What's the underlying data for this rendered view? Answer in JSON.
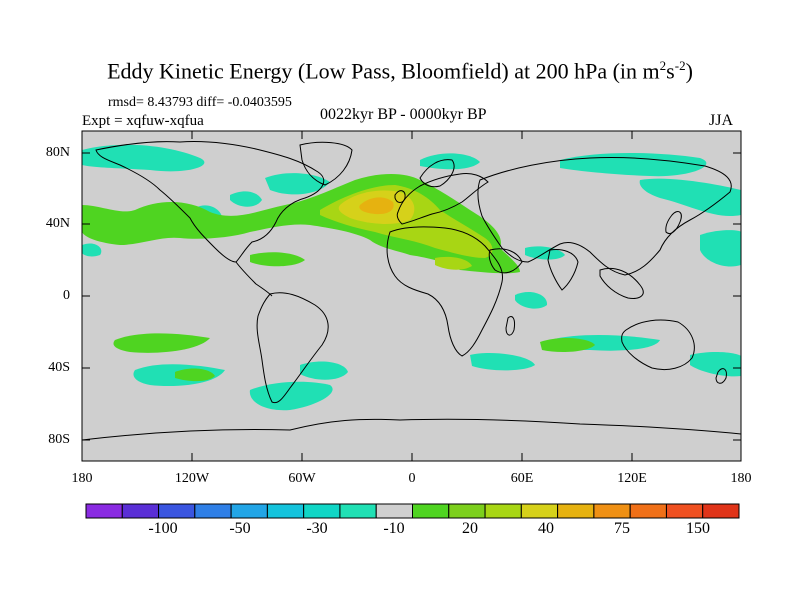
{
  "title_main": "Eddy Kinetic Energy (Low Pass, Bloomfield) at 200 hPa (in m",
  "title_sup1": "2",
  "title_s": "s",
  "title_sup2": "-2",
  "title_end": ")",
  "stats": "rmsd= 8.43793 diff= -0.0403595",
  "expt": "Expt = xqfuw-xqfua",
  "period": "0022kyr BP - 0000kyr BP",
  "season": "JJA",
  "lat_labels": [
    "80N",
    "40N",
    "0",
    "40S",
    "80S"
  ],
  "lon_labels": [
    "180",
    "120W",
    "60W",
    "0",
    "60E",
    "120E",
    "180"
  ],
  "colorbar": {
    "colors": [
      "#8a2be2",
      "#5a2fd6",
      "#3a55e0",
      "#2f7fe6",
      "#22a5e6",
      "#14c3dc",
      "#10d6c6",
      "#20e0b4",
      "#cfcfcf",
      "#4fd421",
      "#7ccf1c",
      "#a8d614",
      "#d6d11a",
      "#e6b210",
      "#ef9014",
      "#f07018",
      "#ef5020",
      "#e03419"
    ],
    "labels": [
      "-100",
      "-50",
      "-30",
      "-10",
      "20",
      "40",
      "75",
      "150"
    ]
  },
  "colors": {
    "land_ocean_base": "#cfcfcf",
    "teal": "#20e0b4",
    "green": "#4fd421",
    "yellow_green": "#a8d614",
    "yellow": "#d6d11a",
    "orange": "#e6b210"
  }
}
